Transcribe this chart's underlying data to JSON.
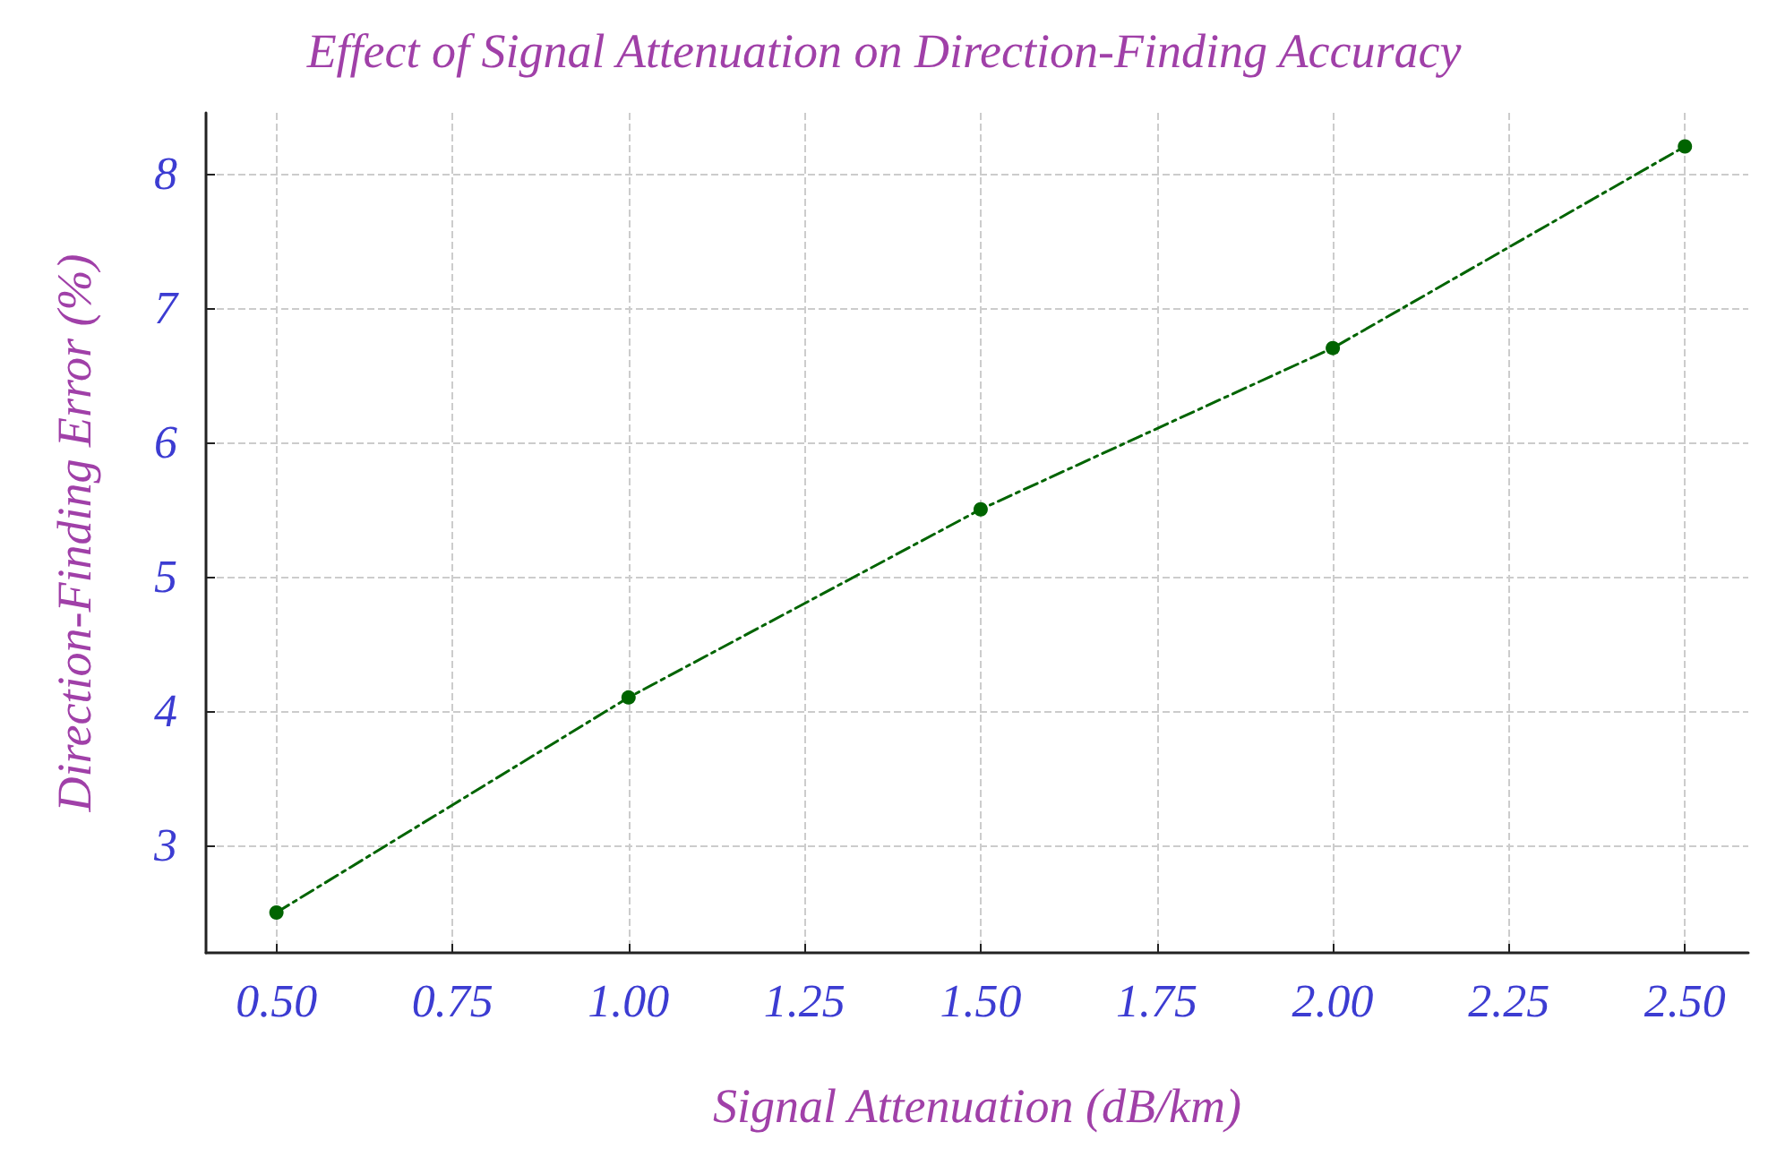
{
  "chart_data": {
    "type": "line",
    "title": "Effect of Signal Attenuation on Direction-Finding Accuracy",
    "xlabel": "Signal Attenuation (dB/km)",
    "ylabel": "Direction-Finding Error (%)",
    "x": [
      0.5,
      1.0,
      1.5,
      2.0,
      2.5
    ],
    "series": [
      {
        "color": "#006400",
        "values": [
          2.5,
          4.1,
          5.5,
          6.7,
          8.2
        ]
      }
    ],
    "xlim": [
      0.4,
      2.59
    ],
    "ylim": [
      2.2,
      8.45
    ],
    "xticks": [
      {
        "value": 0.5,
        "label": "0.50"
      },
      {
        "value": 0.75,
        "label": "0.75"
      },
      {
        "value": 1.0,
        "label": "1.00"
      },
      {
        "value": 1.25,
        "label": "1.25"
      },
      {
        "value": 1.5,
        "label": "1.50"
      },
      {
        "value": 1.75,
        "label": "1.75"
      },
      {
        "value": 2.0,
        "label": "2.00"
      },
      {
        "value": 2.25,
        "label": "2.25"
      },
      {
        "value": 2.5,
        "label": "2.50"
      }
    ],
    "yticks": [
      3,
      4,
      5,
      6,
      7,
      8
    ],
    "grid": true,
    "marker": "circle",
    "line_style": "dashed"
  }
}
